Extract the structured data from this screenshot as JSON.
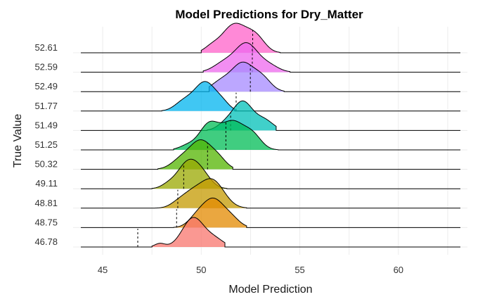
{
  "chart_data": {
    "type": "ridgeline",
    "title": "Model Predictions for Dry_Matter",
    "xlabel": "Model Prediction",
    "ylabel": "True Value",
    "xlim": [
      43.5,
      63.5
    ],
    "xticks": [
      45,
      50,
      55,
      60
    ],
    "grid": true,
    "legend": "none",
    "series": [
      {
        "label": "46.78",
        "true_value": 46.78,
        "color": "#F8766D",
        "peaks": [
          {
            "mu": 49.6,
            "sd": 0.55,
            "amp": 1.0
          },
          {
            "mu": 50.7,
            "sd": 0.45,
            "amp": 0.25
          },
          {
            "mu": 47.9,
            "sd": 0.25,
            "amp": 0.12
          }
        ],
        "range": [
          47.5,
          51.2
        ]
      },
      {
        "label": "48.75",
        "true_value": 48.75,
        "color": "#E38900",
        "peaks": [
          {
            "mu": 50.6,
            "sd": 0.6,
            "amp": 1.0
          },
          {
            "mu": 51.6,
            "sd": 0.4,
            "amp": 0.2
          },
          {
            "mu": 49.7,
            "sd": 0.4,
            "amp": 0.2
          }
        ],
        "range": [
          48.6,
          52.3
        ]
      },
      {
        "label": "48.81",
        "true_value": 48.81,
        "color": "#C49A00",
        "peaks": [
          {
            "mu": 50.55,
            "sd": 0.6,
            "amp": 1.0
          },
          {
            "mu": 49.5,
            "sd": 0.5,
            "amp": 0.45
          },
          {
            "mu": 48.8,
            "sd": 0.4,
            "amp": 0.15
          }
        ],
        "range": [
          47.6,
          52.3
        ]
      },
      {
        "label": "49.11",
        "true_value": 49.11,
        "color": "#99A800",
        "peaks": [
          {
            "mu": 49.35,
            "sd": 0.55,
            "amp": 1.0
          },
          {
            "mu": 50.1,
            "sd": 0.45,
            "amp": 0.35
          },
          {
            "mu": 48.3,
            "sd": 0.35,
            "amp": 0.12
          }
        ],
        "range": [
          47.5,
          51.3
        ]
      },
      {
        "label": "50.32",
        "true_value": 50.32,
        "color": "#53B400",
        "peaks": [
          {
            "mu": 50.0,
            "sd": 0.55,
            "amp": 1.0
          },
          {
            "mu": 49.0,
            "sd": 0.5,
            "amp": 0.35
          },
          {
            "mu": 50.9,
            "sd": 0.4,
            "amp": 0.3
          }
        ],
        "range": [
          47.8,
          51.6
        ]
      },
      {
        "label": "51.25",
        "true_value": 51.25,
        "color": "#00BC56",
        "peaks": [
          {
            "mu": 50.4,
            "sd": 0.5,
            "amp": 0.9
          },
          {
            "mu": 51.6,
            "sd": 0.55,
            "amp": 0.95
          },
          {
            "mu": 52.6,
            "sd": 0.45,
            "amp": 0.5
          },
          {
            "mu": 49.3,
            "sd": 0.4,
            "amp": 0.15
          }
        ],
        "range": [
          48.6,
          53.9
        ]
      },
      {
        "label": "51.49",
        "true_value": 51.49,
        "color": "#00C0B8",
        "peaks": [
          {
            "mu": 52.1,
            "sd": 0.5,
            "amp": 1.0
          },
          {
            "mu": 53.2,
            "sd": 0.45,
            "amp": 0.35
          },
          {
            "mu": 51.2,
            "sd": 0.4,
            "amp": 0.2
          }
        ],
        "range": [
          50.3,
          53.8
        ]
      },
      {
        "label": "51.77",
        "true_value": 51.77,
        "color": "#00B4EF",
        "peaks": [
          {
            "mu": 50.2,
            "sd": 0.55,
            "amp": 1.0
          },
          {
            "mu": 49.1,
            "sd": 0.45,
            "amp": 0.3
          },
          {
            "mu": 51.1,
            "sd": 0.35,
            "amp": 0.2
          }
        ],
        "range": [
          48.0,
          51.7
        ]
      },
      {
        "label": "52.49",
        "true_value": 52.49,
        "color": "#A58AFF",
        "peaks": [
          {
            "mu": 52.1,
            "sd": 0.55,
            "amp": 1.0
          },
          {
            "mu": 51.0,
            "sd": 0.5,
            "amp": 0.35
          },
          {
            "mu": 53.1,
            "sd": 0.45,
            "amp": 0.45
          }
        ],
        "range": [
          50.4,
          54.2
        ]
      },
      {
        "label": "52.59",
        "true_value": 52.59,
        "color": "#ED68ED",
        "peaks": [
          {
            "mu": 52.3,
            "sd": 0.55,
            "amp": 1.0
          },
          {
            "mu": 51.2,
            "sd": 0.55,
            "amp": 0.35
          },
          {
            "mu": 53.4,
            "sd": 0.5,
            "amp": 0.25
          }
        ],
        "range": [
          50.1,
          54.5
        ]
      },
      {
        "label": "52.61",
        "true_value": 52.61,
        "color": "#FF61C9",
        "peaks": [
          {
            "mu": 51.7,
            "sd": 0.65,
            "amp": 1.0
          },
          {
            "mu": 52.8,
            "sd": 0.45,
            "amp": 0.45
          },
          {
            "mu": 50.5,
            "sd": 0.35,
            "amp": 0.15
          }
        ],
        "range": [
          50.0,
          54.0
        ]
      }
    ]
  }
}
